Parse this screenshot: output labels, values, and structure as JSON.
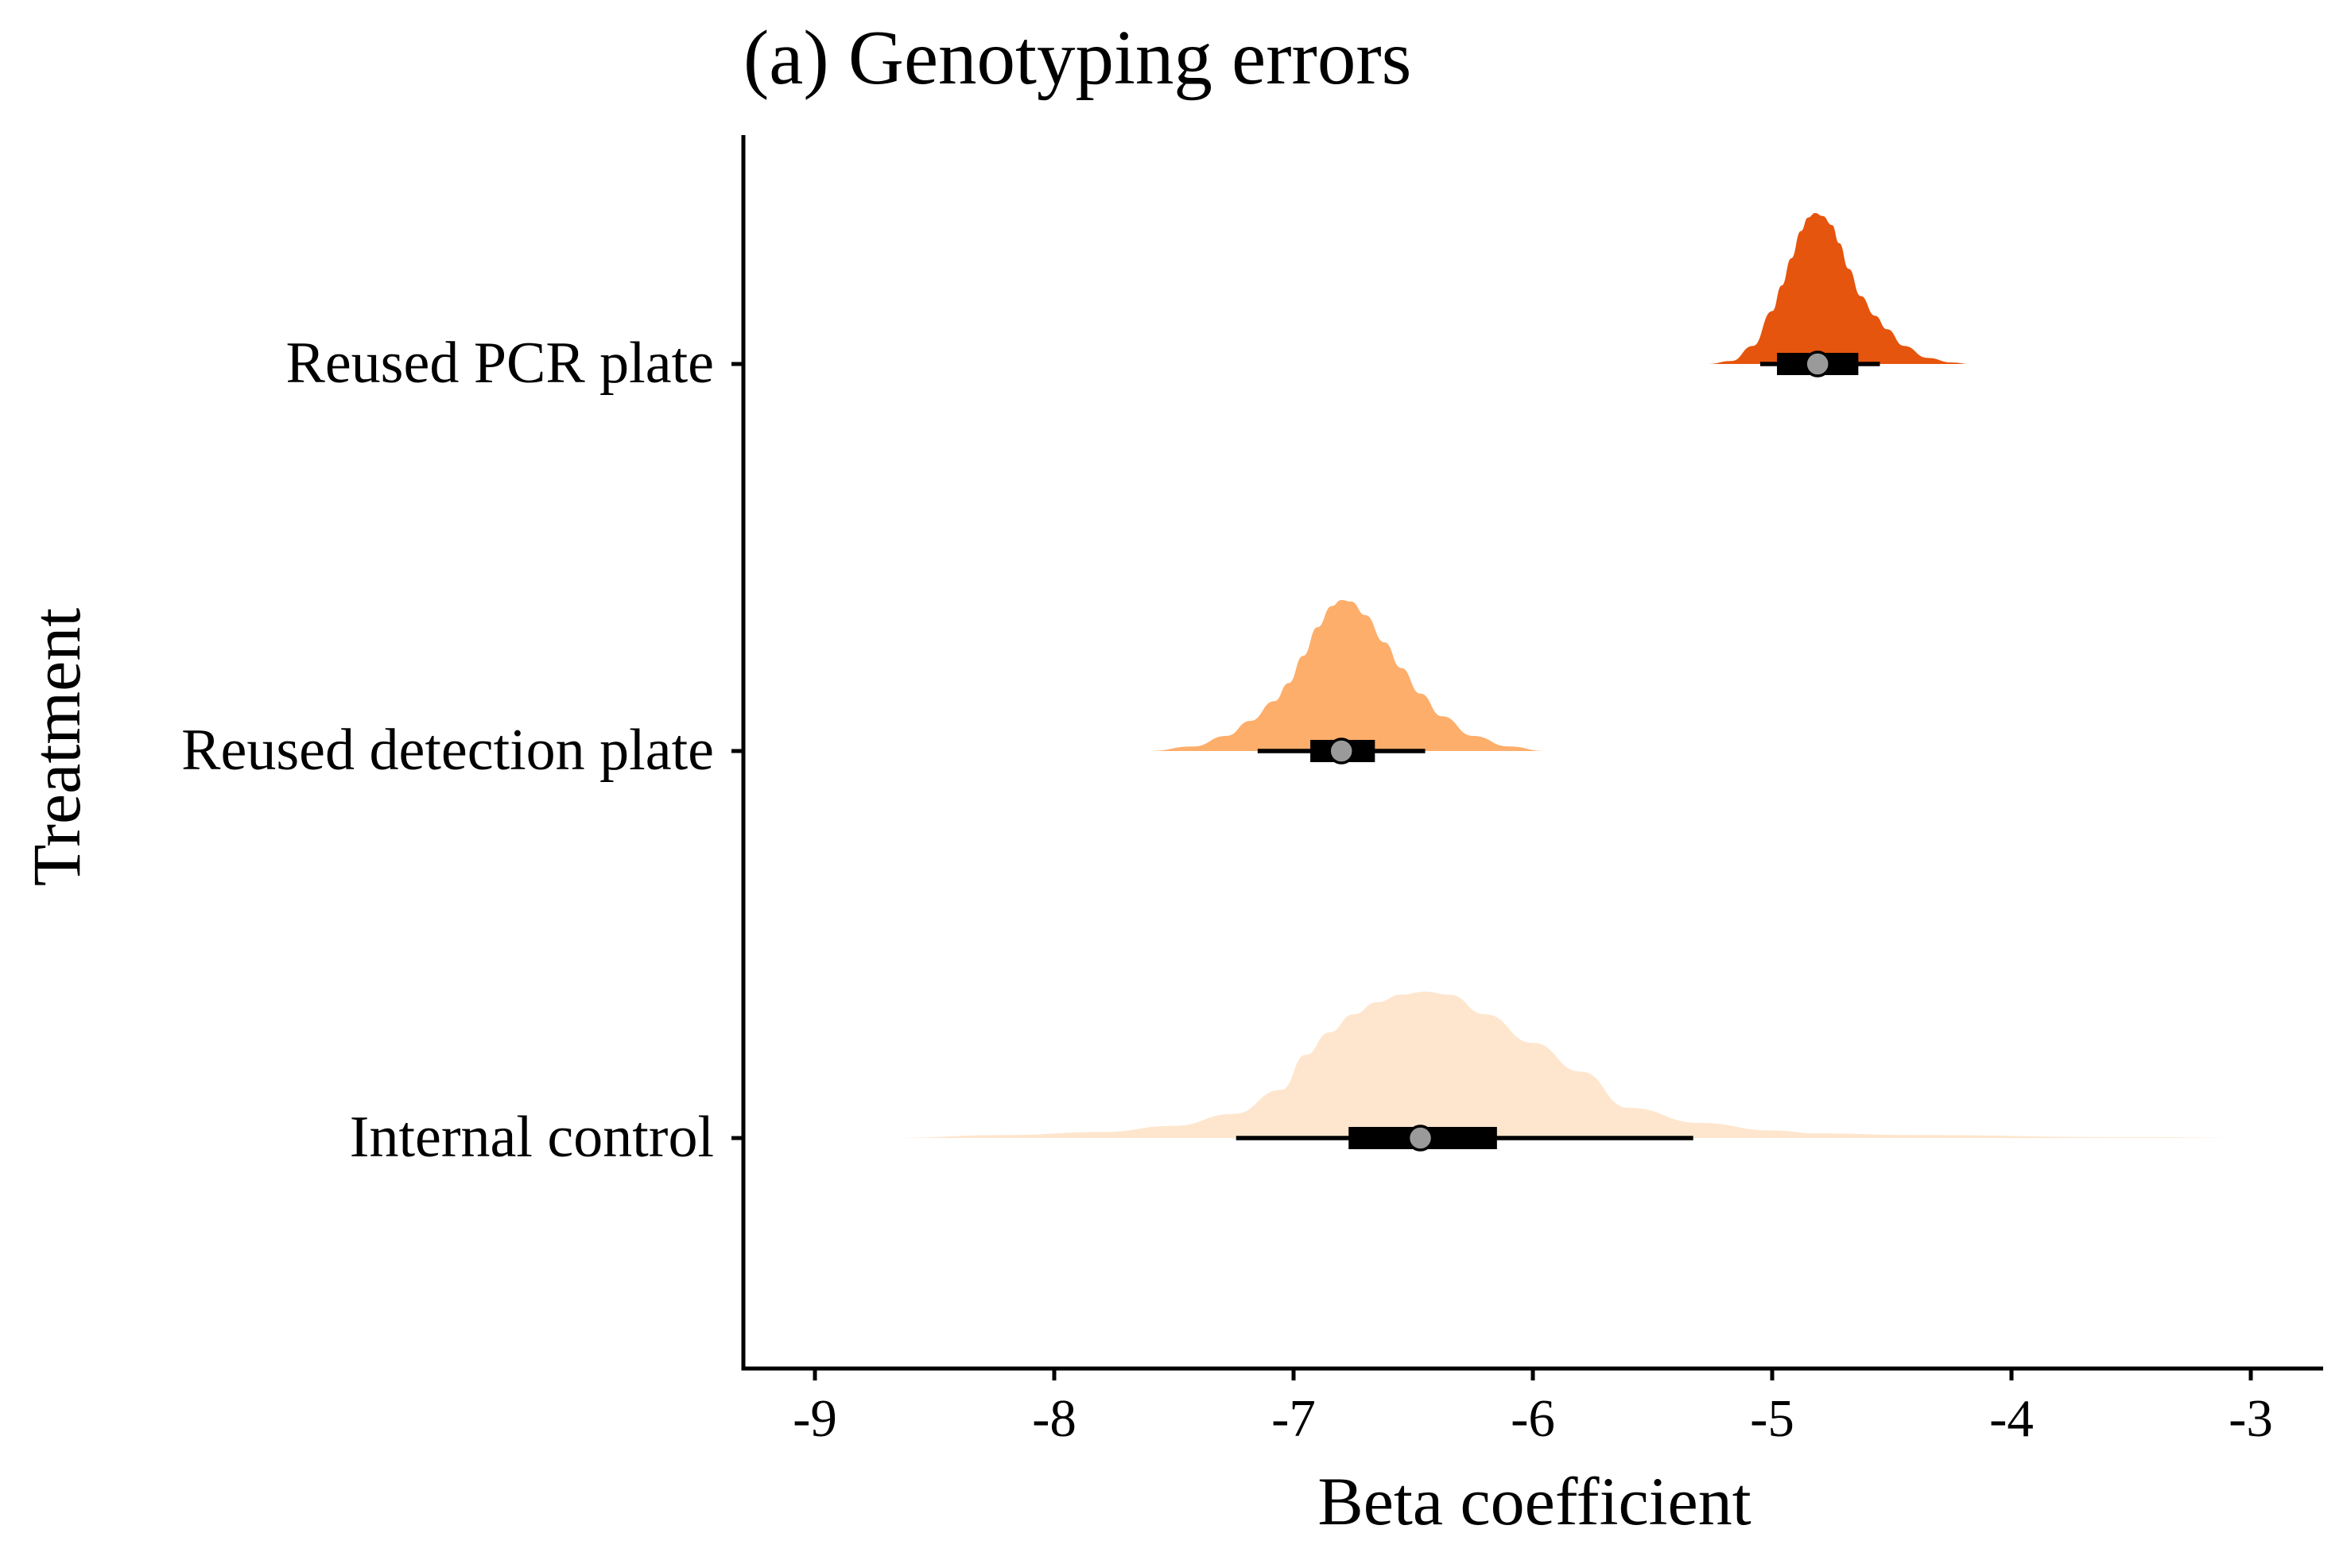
{
  "chart_data": {
    "type": "halfeye",
    "title": "(a) Genotyping errors",
    "xlabel": "Beta coefficient",
    "ylabel": "Treatment",
    "xlim": [
      -9.3,
      -2.7
    ],
    "xticks": [
      -9,
      -8,
      -7,
      -6,
      -5,
      -4,
      -3
    ],
    "xtick_labels": [
      "-9",
      "-8",
      "-7",
      "-6",
      "-5",
      "-4",
      "-3"
    ],
    "grid": false,
    "legend": "none",
    "categories": [
      "Reused PCR plate",
      "Reused detection plate",
      "Internal control"
    ],
    "series": [
      {
        "category": "Reused PCR plate",
        "color": "#e6550d",
        "median": -4.81,
        "interval_66": [
          -4.98,
          -4.64
        ],
        "interval_95": [
          -5.05,
          -4.55
        ],
        "density": {
          "x": [
            -5.27,
            -5.17,
            -5.08,
            -5.0,
            -4.96,
            -4.92,
            -4.88,
            -4.85,
            -4.82,
            -4.79,
            -4.75,
            -4.72,
            -4.68,
            -4.63,
            -4.57,
            -4.52,
            -4.45,
            -4.35,
            -4.25,
            -4.17
          ],
          "y": [
            0.0,
            0.02,
            0.12,
            0.35,
            0.52,
            0.7,
            0.88,
            0.97,
            1.0,
            0.98,
            0.92,
            0.8,
            0.63,
            0.45,
            0.32,
            0.23,
            0.12,
            0.04,
            0.01,
            0.0
          ]
        }
      },
      {
        "category": "Reused detection plate",
        "color": "#fdae6b",
        "median": -6.8,
        "interval_66": [
          -6.93,
          -6.66
        ],
        "interval_95": [
          -7.15,
          -6.45
        ],
        "density": {
          "x": [
            -7.6,
            -7.42,
            -7.28,
            -7.18,
            -7.08,
            -7.02,
            -6.96,
            -6.9,
            -6.84,
            -6.8,
            -6.76,
            -6.7,
            -6.62,
            -6.55,
            -6.47,
            -6.38,
            -6.25,
            -6.1,
            -5.95
          ],
          "y": [
            0.0,
            0.03,
            0.1,
            0.2,
            0.33,
            0.45,
            0.63,
            0.82,
            0.96,
            1.0,
            0.99,
            0.9,
            0.72,
            0.55,
            0.38,
            0.23,
            0.1,
            0.03,
            0.0
          ]
        }
      },
      {
        "category": "Internal control",
        "color": "#fee6ce",
        "median": -6.47,
        "interval_66": [
          -6.77,
          -6.15
        ],
        "interval_95": [
          -7.24,
          -5.33
        ],
        "density": {
          "x": [
            -8.7,
            -8.2,
            -7.8,
            -7.5,
            -7.25,
            -7.05,
            -6.95,
            -6.85,
            -6.75,
            -6.65,
            -6.55,
            -6.45,
            -6.35,
            -6.2,
            -6.0,
            -5.8,
            -5.6,
            -5.3,
            -5.0,
            -4.8,
            -4.4,
            -3.5,
            -3.0
          ],
          "y": [
            0.0,
            0.02,
            0.04,
            0.08,
            0.16,
            0.32,
            0.55,
            0.7,
            0.82,
            0.9,
            0.95,
            0.97,
            0.95,
            0.82,
            0.63,
            0.44,
            0.2,
            0.1,
            0.05,
            0.03,
            0.02,
            0.005,
            0.0
          ]
        }
      }
    ]
  }
}
